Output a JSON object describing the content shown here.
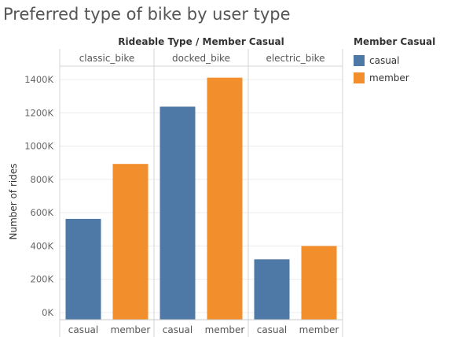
{
  "title": "Preferred type of bike by user type",
  "chart_data": {
    "type": "bar",
    "header": "Rideable Type  /  Member Casual",
    "ylabel": "Number of rides",
    "ylim": [
      0,
      1500000
    ],
    "yticks": [
      0,
      200000,
      400000,
      600000,
      800000,
      1000000,
      1200000,
      1400000
    ],
    "ytick_labels": [
      "0K",
      "200K",
      "400K",
      "600K",
      "800K",
      "1000K",
      "1200K",
      "1400K"
    ],
    "grid": true,
    "panels": [
      {
        "name": "classic_bike",
        "categories": [
          "casual",
          "member"
        ],
        "values": [
          563000,
          893000
        ]
      },
      {
        "name": "docked_bike",
        "categories": [
          "casual",
          "member"
        ],
        "values": [
          1237000,
          1411000
        ]
      },
      {
        "name": "electric_bike",
        "categories": [
          "casual",
          "member"
        ],
        "values": [
          320000,
          400000
        ]
      }
    ],
    "colors": {
      "casual": "#4e79a7",
      "member": "#f28e2b"
    }
  },
  "legend": {
    "title": "Member Casual",
    "items": [
      {
        "label": "casual",
        "color": "#4e79a7"
      },
      {
        "label": "member",
        "color": "#f28e2b"
      }
    ]
  }
}
